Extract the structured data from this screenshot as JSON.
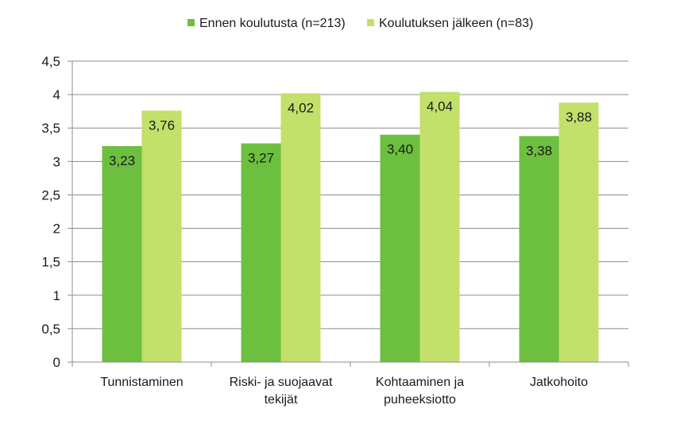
{
  "chart_data": {
    "type": "bar",
    "title": "",
    "xlabel": "",
    "ylabel": "",
    "categories": [
      [
        "Tunnistaminen"
      ],
      [
        "Riski- ja suojaavat",
        "tekijät"
      ],
      [
        "Kohtaaminen ja",
        "puheeksiotto"
      ],
      [
        "Jatkohoito"
      ]
    ],
    "series": [
      {
        "name": "Ennen koulutusta (n=213)",
        "values": [
          3.23,
          3.27,
          3.4,
          3.38
        ],
        "labels": [
          "3,23",
          "3,27",
          "3,40",
          "3,38"
        ],
        "color": "#6cbf3f"
      },
      {
        "name": "Koulutuksen jälkeen (n=83)",
        "values": [
          3.76,
          4.02,
          4.04,
          3.88
        ],
        "labels": [
          "3,76",
          "4,02",
          "4,04",
          "3,88"
        ],
        "color": "#c2e06a"
      }
    ],
    "ylim": [
      0,
      4.5
    ],
    "yticks": [
      "0",
      "0,5",
      "1",
      "1,5",
      "2",
      "2,5",
      "3",
      "3,5",
      "4",
      "4,5"
    ],
    "grid": true,
    "legend": "top"
  }
}
